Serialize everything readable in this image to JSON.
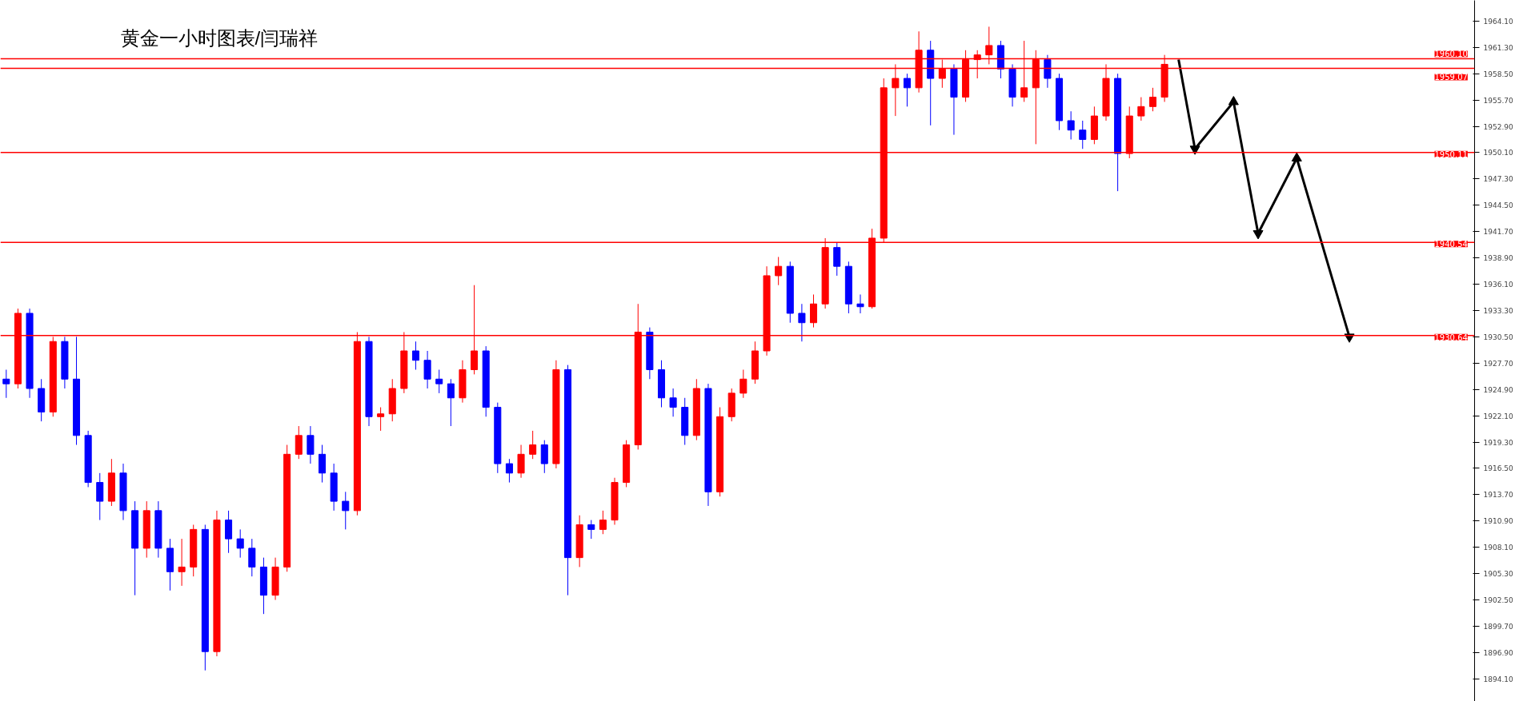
{
  "chart_data": {
    "type": "candlestick",
    "title": "黄金一小时图表/闫瑞祥",
    "categories": [
      null,
      null,
      null,
      null,
      null,
      null,
      null,
      null,
      null,
      null,
      null,
      null,
      null,
      null,
      null,
      null,
      null,
      null,
      null,
      null,
      null,
      null,
      null,
      null,
      null,
      null,
      null,
      null,
      null,
      null,
      null,
      null,
      null,
      null,
      null,
      null,
      null,
      null,
      null,
      null,
      null,
      null,
      null,
      null,
      null,
      null,
      null,
      null,
      null,
      null,
      null,
      null,
      null,
      null,
      null,
      null,
      null,
      null,
      null,
      null,
      null,
      null,
      null,
      null,
      null,
      null,
      null,
      null,
      null,
      null,
      null,
      null,
      null,
      null,
      null,
      null,
      null,
      null,
      null,
      null,
      null,
      null,
      null,
      null,
      null,
      null,
      null,
      null,
      null,
      null,
      null,
      null,
      null,
      null,
      null,
      null,
      null,
      null,
      null,
      null,
      null,
      null,
      null,
      null,
      null,
      null,
      null,
      null,
      null,
      null,
      null,
      null,
      null,
      null,
      null,
      null,
      null,
      null,
      null,
      null,
      null,
      null,
      null,
      null,
      null,
      null
    ],
    "colors": [
      "#0000ff",
      "#ff0000",
      "#0000ff",
      "#0000ff",
      "#ff0000",
      "#0000ff",
      "#0000ff",
      "#0000ff",
      "#0000ff",
      "#ff0000",
      "#0000ff",
      "#0000ff",
      "#ff0000",
      "#0000ff",
      "#0000ff",
      "#ff0000",
      "#ff0000",
      "#0000ff",
      "#ff0000",
      "#0000ff",
      "#0000ff",
      "#0000ff",
      "#0000ff",
      "#ff0000",
      "#ff0000",
      "#ff0000",
      "#0000ff",
      "#0000ff",
      "#0000ff",
      "#0000ff",
      "#ff0000",
      "#0000ff",
      "#ff0000",
      "#ff0000",
      "#ff0000",
      "#0000ff",
      "#0000ff",
      "#0000ff",
      "#0000ff",
      "#ff0000",
      "#ff0000",
      "#0000ff",
      "#0000ff",
      "#0000ff",
      "#ff0000",
      "#ff0000",
      "#0000ff",
      "#ff0000",
      "#0000ff",
      "#ff0000",
      "#0000ff",
      "#ff0000",
      "#ff0000",
      "#ff0000",
      "#ff0000",
      "#0000ff",
      "#0000ff",
      "#0000ff",
      "#0000ff",
      "#ff0000",
      "#0000ff",
      "#ff0000",
      "#ff0000",
      "#ff0000",
      "#ff0000",
      "#ff0000",
      "#ff0000",
      "#0000ff",
      "#0000ff",
      "#ff0000",
      "#ff0000",
      "#0000ff",
      "#0000ff",
      "#0000ff",
      "#ff0000",
      "#ff0000",
      "#ff0000",
      "#0000ff",
      "#ff0000",
      "#0000ff",
      "#ff0000",
      "#0000ff",
      "#ff0000",
      "#ff0000",
      "#ff0000",
      "#0000ff",
      "#0000ff",
      "#ff0000",
      "#ff0000",
      "#0000ff",
      "#0000ff",
      "#0000ff",
      "#0000ff",
      "#ff0000",
      "#ff0000",
      "#0000ff",
      "#ff0000",
      "#ff0000",
      "#ff0000",
      "#ff0000",
      null,
      null,
      null,
      null,
      null,
      null,
      null,
      null,
      null,
      null,
      null,
      null,
      null,
      null,
      null,
      null,
      null,
      null,
      null,
      null,
      null,
      null,
      null,
      null,
      null,
      null
    ],
    "ohlc": [
      [
        1926,
        1927,
        1924,
        1925.5
      ],
      [
        1925.5,
        1933.5,
        1925,
        1933
      ],
      [
        1933,
        1933.5,
        1924,
        1925
      ],
      [
        1925,
        1926,
        1921.5,
        1922.5
      ],
      [
        1922.5,
        1930.5,
        1922,
        1930
      ],
      [
        1930,
        1930.5,
        1925,
        1926
      ],
      [
        1926,
        1930.5,
        1919,
        1920
      ],
      [
        1920,
        1920.5,
        1914.5,
        1915
      ],
      [
        1915,
        1916,
        1911,
        1913
      ],
      [
        1913,
        1917.5,
        1912.5,
        1916
      ],
      [
        1916,
        1917,
        1911,
        1912
      ],
      [
        1912,
        1913,
        1903,
        1908
      ],
      [
        1908,
        1913,
        1907,
        1912
      ],
      [
        1912,
        1913,
        1907,
        1908
      ],
      [
        1908,
        1909,
        1903.5,
        1905.5
      ],
      [
        1905.5,
        1909,
        1904,
        1906
      ],
      [
        1906,
        1910.5,
        1905,
        1910
      ],
      [
        1910,
        1910.5,
        1895,
        1897
      ],
      [
        1897,
        1912,
        1896.5,
        1911
      ],
      [
        1911,
        1912,
        1907.5,
        1909
      ],
      [
        1909,
        1910,
        1907,
        1908
      ],
      [
        1908,
        1909,
        1905,
        1906
      ],
      [
        1906,
        1907,
        1901,
        1903
      ],
      [
        1903,
        1907,
        1902.5,
        1906
      ],
      [
        1906,
        1919,
        1905.5,
        1918
      ],
      [
        1918,
        1921,
        1917.5,
        1920
      ],
      [
        1920,
        1921,
        1917,
        1918
      ],
      [
        1918,
        1919,
        1915,
        1916
      ],
      [
        1916,
        1917,
        1912,
        1913
      ],
      [
        1913,
        1914,
        1910,
        1912
      ],
      [
        1912,
        1931,
        1911.5,
        1930
      ],
      [
        1930,
        1930.5,
        1921,
        1922
      ],
      [
        1922,
        1923,
        1920.5,
        1922.3
      ],
      [
        1922.3,
        1926,
        1921.5,
        1925
      ],
      [
        1925,
        1931,
        1924.5,
        1929
      ],
      [
        1929,
        1930,
        1927,
        1928
      ],
      [
        1928,
        1929,
        1925,
        1926
      ],
      [
        1926,
        1927,
        1924.5,
        1925.5
      ],
      [
        1925.5,
        1926,
        1921,
        1924
      ],
      [
        1924,
        1928,
        1923.5,
        1927
      ],
      [
        1927,
        1936,
        1926.5,
        1929
      ],
      [
        1929,
        1929.5,
        1922,
        1923
      ],
      [
        1923,
        1923.5,
        1916,
        1917
      ],
      [
        1917,
        1917.5,
        1915,
        1916
      ],
      [
        1916,
        1919,
        1915.5,
        1918
      ],
      [
        1918,
        1920.5,
        1917.5,
        1919
      ],
      [
        1919,
        1919.5,
        1916,
        1917
      ],
      [
        1917,
        1928,
        1916.5,
        1927
      ],
      [
        1927,
        1927.5,
        1903,
        1907
      ],
      [
        1907,
        1911.5,
        1906,
        1910.5
      ],
      [
        1910.5,
        1911,
        1909,
        1910
      ],
      [
        1910,
        1912,
        1909.5,
        1911
      ],
      [
        1911,
        1915.5,
        1910.5,
        1915
      ],
      [
        1915,
        1919.5,
        1914.5,
        1919
      ],
      [
        1919,
        1934,
        1918.5,
        1931
      ],
      [
        1931,
        1931.5,
        1926,
        1927
      ],
      [
        1927,
        1928,
        1923,
        1924
      ],
      [
        1924,
        1925,
        1922,
        1923
      ],
      [
        1923,
        1924,
        1919,
        1920
      ],
      [
        1920,
        1926,
        1919.5,
        1925
      ],
      [
        1925,
        1925.5,
        1912.5,
        1914
      ],
      [
        1914,
        1923,
        1913.5,
        1922
      ],
      [
        1922,
        1925,
        1921.5,
        1924.5
      ],
      [
        1924.5,
        1927,
        1924,
        1926
      ],
      [
        1926,
        1930,
        1925.5,
        1929
      ],
      [
        1929,
        1938,
        1928.5,
        1937
      ],
      [
        1937,
        1939,
        1936,
        1938
      ],
      [
        1938,
        1938.5,
        1932,
        1933
      ],
      [
        1933,
        1934,
        1930,
        1932
      ],
      [
        1932,
        1935,
        1931.5,
        1934
      ],
      [
        1934,
        1941,
        1933.5,
        1940
      ],
      [
        1940,
        1940.5,
        1937,
        1938
      ],
      [
        1938,
        1938.5,
        1933,
        1934
      ],
      [
        1934,
        1935,
        1933,
        1933.7
      ],
      [
        1933.7,
        1942,
        1933.5,
        1941
      ],
      [
        1941,
        1958,
        1940.5,
        1957
      ],
      [
        1957,
        1959.5,
        1954,
        1958
      ],
      [
        1958,
        1958.5,
        1955,
        1957
      ],
      [
        1957,
        1963,
        1956.5,
        1961
      ],
      [
        1961,
        1962,
        1953,
        1958
      ],
      [
        1958,
        1960,
        1957,
        1959
      ],
      [
        1959,
        1959.5,
        1952,
        1956
      ],
      [
        1956,
        1961,
        1955.5,
        1960
      ],
      [
        1960,
        1961,
        1958,
        1960.5
      ],
      [
        1960.5,
        1963.5,
        1959.5,
        1961.5
      ],
      [
        1961.5,
        1962,
        1958,
        1959
      ],
      [
        1959,
        1959.5,
        1955,
        1956
      ],
      [
        1956,
        1962,
        1955.5,
        1957
      ],
      [
        1957,
        1961,
        1951,
        1960
      ],
      [
        1960,
        1960.5,
        1957,
        1958
      ],
      [
        1958,
        1958.5,
        1952.5,
        1953.5
      ],
      [
        1953.5,
        1954.5,
        1951.5,
        1952.5
      ],
      [
        1952.5,
        1953.5,
        1950.5,
        1951.5
      ],
      [
        1951.5,
        1955,
        1951,
        1954
      ],
      [
        1954,
        1959.5,
        1953.5,
        1958
      ],
      [
        1958,
        1958.5,
        1946,
        1950
      ],
      [
        1950,
        1955,
        1949.5,
        1954
      ],
      [
        1954,
        1956,
        1953.5,
        1955
      ],
      [
        1955,
        1957,
        1954.5,
        1956
      ],
      [
        1956,
        1960.5,
        1955.5,
        1959.5
      ],
      null,
      null,
      null,
      null,
      null,
      null,
      null,
      null,
      null,
      null,
      null,
      null,
      null,
      null,
      null,
      null,
      null,
      null,
      null,
      null,
      null,
      null,
      null,
      null,
      null,
      null
    ],
    "ylim": [
      1891.7,
      1966.3
    ],
    "yticks": [
      {
        "value": 1964.1,
        "label": "1964.10"
      },
      {
        "value": 1961.3,
        "label": "1961.30"
      },
      {
        "value": 1958.5,
        "label": "1958.50"
      },
      {
        "value": 1955.7,
        "label": "1955.70"
      },
      {
        "value": 1952.9,
        "label": "1952.90"
      },
      {
        "value": 1950.1,
        "label": "1950.10"
      },
      {
        "value": 1947.3,
        "label": "1947.30"
      },
      {
        "value": 1944.5,
        "label": "1944.50"
      },
      {
        "value": 1941.7,
        "label": "1941.70"
      },
      {
        "value": 1938.9,
        "label": "1938.90"
      },
      {
        "value": 1936.1,
        "label": "1936.10"
      },
      {
        "value": 1933.3,
        "label": "1933.30"
      },
      {
        "value": 1930.5,
        "label": "1930.50"
      },
      {
        "value": 1927.7,
        "label": "1927.70"
      },
      {
        "value": 1924.9,
        "label": "1924.90"
      },
      {
        "value": 1922.1,
        "label": "1922.10"
      },
      {
        "value": 1919.3,
        "label": "1919.30"
      },
      {
        "value": 1916.5,
        "label": "1916.50"
      },
      {
        "value": 1913.7,
        "label": "1913.70"
      },
      {
        "value": 1910.9,
        "label": "1910.90"
      },
      {
        "value": 1908.1,
        "label": "1908.10"
      },
      {
        "value": 1905.3,
        "label": "1905.30"
      },
      {
        "value": 1902.5,
        "label": "1902.50"
      },
      {
        "value": 1899.7,
        "label": "1899.70"
      },
      {
        "value": 1896.9,
        "label": "1896.90"
      },
      {
        "value": 1894.1,
        "label": "1894.10"
      }
    ],
    "tick_labels": "y",
    "grid": false,
    "ref_lines": [
      {
        "axis": "y",
        "value": 1960.1,
        "label": "1960.10",
        "color": "#ff0000"
      },
      {
        "axis": "y",
        "value": 1959.07,
        "label": "1959.07",
        "color": "#ff0000"
      },
      {
        "axis": "y",
        "value": 1950.11,
        "label": "1950.11",
        "color": "#ff0000"
      },
      {
        "axis": "y",
        "value": 1940.54,
        "label": "1940.54",
        "color": "#ff0000"
      },
      {
        "axis": "y",
        "value": 1930.64,
        "label": "1930.64",
        "color": "#ff0000"
      }
    ]
  }
}
